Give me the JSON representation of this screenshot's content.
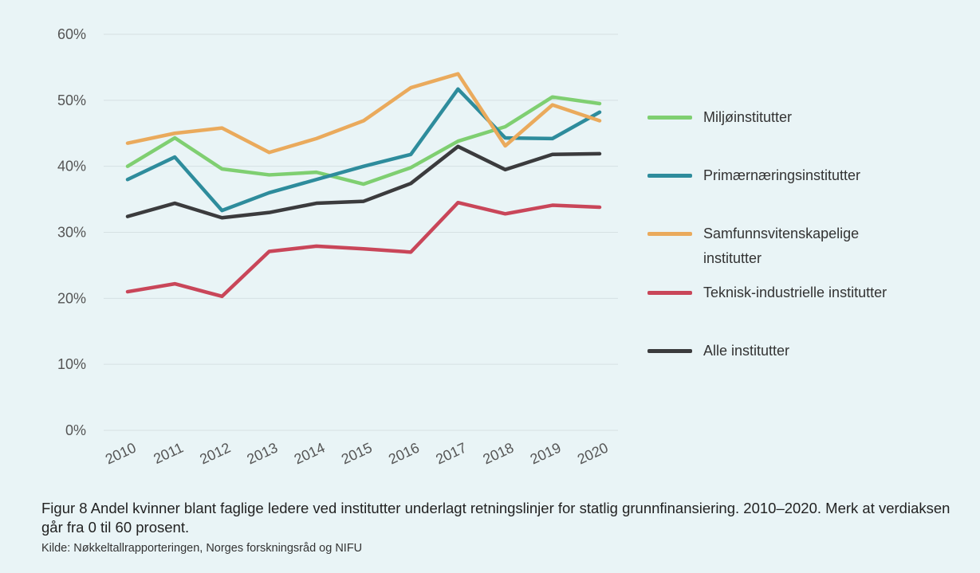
{
  "chart_data": {
    "type": "line",
    "categories": [
      "2010",
      "2011",
      "2012",
      "2013",
      "2014",
      "2015",
      "2016",
      "2017",
      "2018",
      "2019",
      "2020"
    ],
    "series": [
      {
        "name": "Miljøinstitutter",
        "color": "#7fcf71",
        "values": [
          40.0,
          44.3,
          39.6,
          38.7,
          39.1,
          37.3,
          39.8,
          43.8,
          46.0,
          50.5,
          49.5
        ]
      },
      {
        "name": "Primærnæringsinstitutter",
        "color": "#2e8c9c",
        "values": [
          38.0,
          41.4,
          33.3,
          36.0,
          38.0,
          40.0,
          41.8,
          51.7,
          44.3,
          44.2,
          48.2
        ]
      },
      {
        "name": "Samfunnsvitenskapelige institutter",
        "color": "#eaaa5c",
        "values": [
          43.5,
          45.0,
          45.8,
          42.1,
          44.2,
          46.9,
          51.9,
          54.0,
          43.1,
          49.3,
          46.9
        ]
      },
      {
        "name": "Teknisk-industrielle institutter",
        "color": "#c94659",
        "values": [
          21.0,
          22.2,
          20.3,
          27.1,
          27.9,
          27.5,
          27.0,
          34.5,
          32.8,
          34.1,
          33.8
        ]
      },
      {
        "name": "Alle institutter",
        "color": "#3b3b3d",
        "values": [
          32.4,
          34.4,
          32.2,
          33.0,
          34.4,
          34.7,
          37.4,
          43.0,
          39.5,
          41.8,
          41.9
        ]
      }
    ],
    "ylim": [
      0,
      60
    ],
    "yticks": [
      {
        "value": 0,
        "label": "0%"
      },
      {
        "value": 10,
        "label": "10%"
      },
      {
        "value": 20,
        "label": "20%"
      },
      {
        "value": 30,
        "label": "30%"
      },
      {
        "value": 40,
        "label": "40%"
      },
      {
        "value": 50,
        "label": "50%"
      },
      {
        "value": 60,
        "label": "60%"
      }
    ],
    "grid": true,
    "legend": "right"
  },
  "caption": "Figur 8 Andel kvinner blant faglige ledere ved institutter underlagt retningslinjer for statlig grunnfinansiering. 2010–2020. Merk at verdiaksen går fra 0 til 60 prosent.",
  "source": "Kilde: Nøkkeltallrapporteringen, Norges forskningsråd og NIFU"
}
